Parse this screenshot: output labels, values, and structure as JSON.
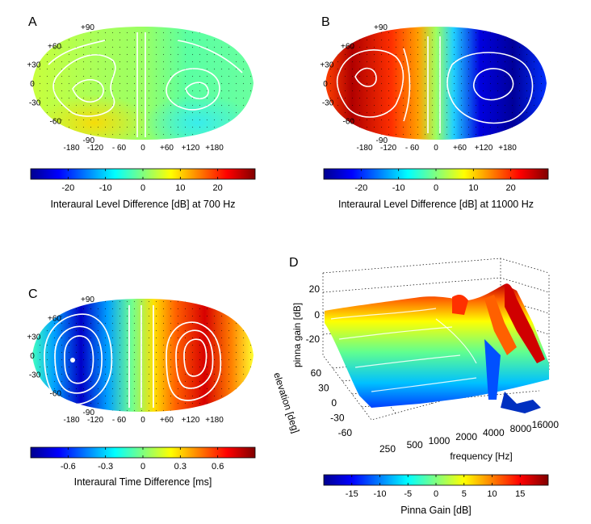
{
  "chart_data": [
    {
      "panel": "A",
      "type": "heatmap",
      "projection": "sinusoidal-like oval (azimuth vs elevation)",
      "elevation_ticks": [
        "+90",
        "+60",
        "+30",
        "0",
        "-30",
        "-60",
        "-90"
      ],
      "azimuth_ticks": [
        "-180",
        "-120",
        "- 60",
        "0",
        "+60",
        "+120",
        "+180"
      ],
      "colorbar": {
        "ticks": [
          "-20",
          "-10",
          "0",
          "10",
          "20"
        ],
        "tick_values": [
          -20,
          -10,
          0,
          10,
          20
        ],
        "range": [
          -30,
          30
        ],
        "colormap": "jet",
        "label": "Interaural Level Difference [dB] at 700 Hz"
      },
      "contours": "white",
      "grid": "dotted"
    },
    {
      "panel": "B",
      "type": "heatmap",
      "projection": "sinusoidal-like oval (azimuth vs elevation)",
      "elevation_ticks": [
        "+90",
        "+60",
        "+30",
        "0",
        "-30",
        "-60",
        "-90"
      ],
      "azimuth_ticks": [
        "-180",
        "-120",
        "- 60",
        "0",
        "+60",
        "+120",
        "+180"
      ],
      "colorbar": {
        "ticks": [
          "-20",
          "-10",
          "0",
          "10",
          "20"
        ],
        "tick_values": [
          -20,
          -10,
          0,
          10,
          20
        ],
        "range": [
          -30,
          30
        ],
        "colormap": "jet",
        "label": "Interaural Level Difference [dB] at 11000 Hz"
      },
      "contours": "white",
      "grid": "dotted"
    },
    {
      "panel": "C",
      "type": "heatmap",
      "projection": "sinusoidal-like oval (azimuth vs elevation)",
      "elevation_ticks": [
        "+90",
        "+60",
        "+30",
        "0",
        "-30",
        "-60",
        "-90"
      ],
      "azimuth_ticks": [
        "-180",
        "-120",
        "- 60",
        "0",
        "+60",
        "+120",
        "+180"
      ],
      "colorbar": {
        "ticks": [
          "-0.6",
          "-0.3",
          "0",
          "0.3",
          "0.6"
        ],
        "tick_values": [
          -0.6,
          -0.3,
          0,
          0.3,
          0.6
        ],
        "range": [
          -0.9,
          0.9
        ],
        "colormap": "jet",
        "label": "Interaural Time Difference [ms]"
      },
      "contours": "white",
      "grid": "dotted"
    },
    {
      "panel": "D",
      "type": "surface3d",
      "z_label": "pinna gain [dB]",
      "z_ticks": [
        "20",
        "0",
        "-20"
      ],
      "y_label": "elevation [deg]",
      "y_ticks": [
        "60",
        "30",
        "0",
        "-30",
        "-60"
      ],
      "x_label": "frequency [Hz]",
      "x_ticks": [
        "250",
        "500",
        "1000",
        "2000",
        "4000",
        "8000",
        "16000"
      ],
      "x_scale": "log",
      "colorbar": {
        "ticks": [
          "-15",
          "-10",
          "-5",
          "0",
          "5",
          "10",
          "15"
        ],
        "tick_values": [
          -15,
          -10,
          -5,
          0,
          5,
          10,
          15
        ],
        "range": [
          -20,
          20
        ],
        "colormap": "jet",
        "label": "Pinna Gain [dB]"
      },
      "grid": "dotted"
    }
  ]
}
